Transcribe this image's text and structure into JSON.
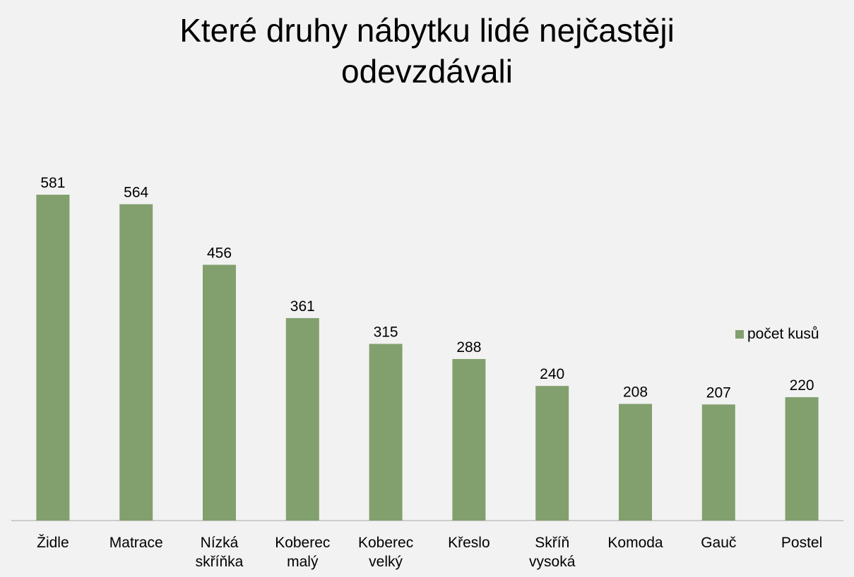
{
  "chart_data": {
    "type": "bar",
    "title_lines": [
      "Které druhy nábytku lidé nejčastěji",
      "odevzdávali"
    ],
    "categories": [
      [
        "Židle"
      ],
      [
        "Matrace"
      ],
      [
        "Nízká",
        "skříňka"
      ],
      [
        "Koberec",
        "malý"
      ],
      [
        "Koberec",
        "velký"
      ],
      [
        "Křeslo"
      ],
      [
        "Skříň",
        "vysoká"
      ],
      [
        "Komoda"
      ],
      [
        "Gauč"
      ],
      [
        "Postel"
      ]
    ],
    "series": [
      {
        "name": "počet kusů",
        "values": [
          581,
          564,
          456,
          361,
          315,
          288,
          240,
          208,
          207,
          220
        ],
        "color": "#82a06e"
      }
    ],
    "ylim": [
      0,
      700
    ],
    "grid": false,
    "legend_position": "right",
    "axis_color": "#a6a6a6",
    "background": "#f2f2f2"
  }
}
